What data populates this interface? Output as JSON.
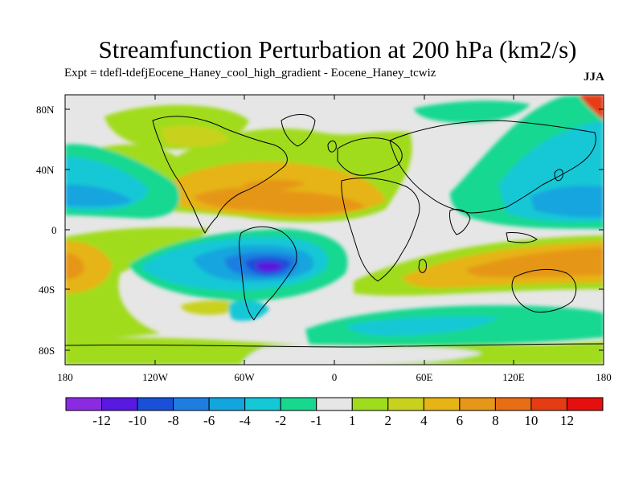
{
  "figure": {
    "title": "Streamfunction Perturbation at 200 hPa (km2/s)",
    "subtitle": "Expt = tdefl-tdefjEocene_Haney_cool_high_gradient - Eocene_Haney_tcwiz",
    "season": "JJA"
  },
  "map": {
    "lat_labels": [
      "80N",
      "40N",
      "0",
      "40S",
      "80S"
    ],
    "lon_labels": [
      "180",
      "120W",
      "60W",
      "0",
      "60E",
      "120E",
      "180"
    ],
    "background_color": "#e6e6e6",
    "coast_color": "#000000"
  },
  "colorbar": {
    "colors": [
      "#8a2be2",
      "#5a19e0",
      "#1a4fd8",
      "#1e7ee0",
      "#12a5de",
      "#14c8d6",
      "#18d890",
      "#e6e6e6",
      "#a0dc1e",
      "#c8d21e",
      "#e6b414",
      "#e69619",
      "#e66e14",
      "#e63c14",
      "#e60f0f"
    ],
    "labels": [
      "-12",
      "-10",
      "-8",
      "-6",
      "-4",
      "-2",
      "-1",
      "1",
      "2",
      "4",
      "6",
      "8",
      "10",
      "12"
    ]
  }
}
